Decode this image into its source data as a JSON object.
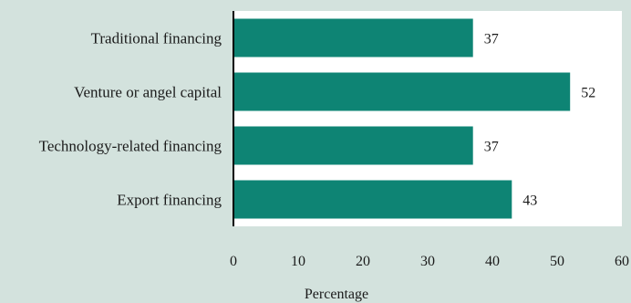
{
  "chart_data": {
    "type": "bar",
    "orientation": "horizontal",
    "categories": [
      "Traditional financing",
      "Venture or angel capital",
      "Technology-related financing",
      "Export financing"
    ],
    "values": [
      37,
      52,
      37,
      43
    ],
    "value_labels": [
      "37",
      "52",
      "37",
      "43"
    ],
    "xlabel": "Percentage",
    "ylabel": "",
    "xlim": [
      0,
      60
    ],
    "xticks": [
      0,
      10,
      20,
      30,
      40,
      50,
      60
    ],
    "xtick_labels": [
      "0",
      "10",
      "20",
      "30",
      "40",
      "50",
      "60"
    ],
    "grid": false,
    "legend": "none",
    "colors": {
      "bar": "#0e8474",
      "plot_background": "#ffffff",
      "page_background": "#d3e2dd",
      "axis": "#000000"
    }
  }
}
